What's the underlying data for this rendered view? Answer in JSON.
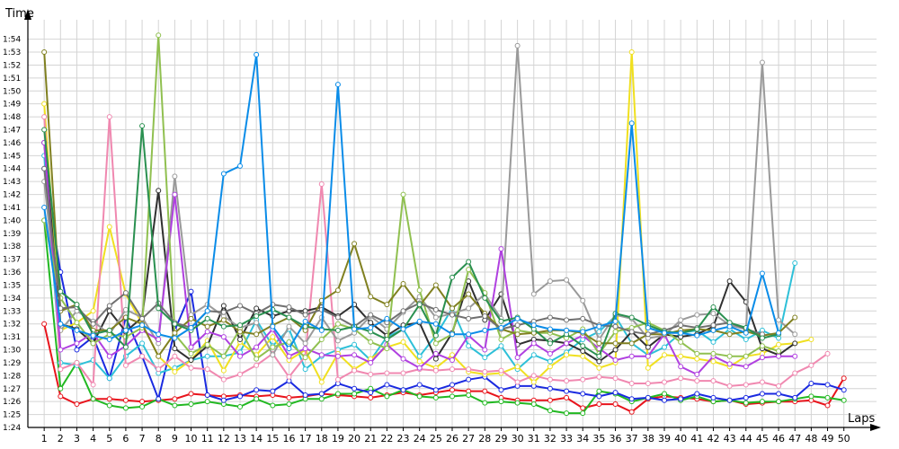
{
  "chart_data": {
    "type": "line",
    "title": "",
    "xlabel": "Laps",
    "ylabel": "Time",
    "xlim": [
      0,
      52
    ],
    "ylim": [
      84,
      115.5
    ],
    "grid": true,
    "y_tick_values": [
      84,
      85,
      86,
      87,
      88,
      89,
      90,
      91,
      92,
      93,
      94,
      95,
      96,
      97,
      98,
      99,
      100,
      101,
      102,
      103,
      104,
      105,
      106,
      107,
      108,
      109,
      110,
      111,
      112,
      113,
      114
    ],
    "y_tick_labels": [
      "1:24",
      "1:25",
      "1:26",
      "1:27",
      "1:28",
      "1:29",
      "1:30",
      "1:31",
      "1:32",
      "1:33",
      "1:34",
      "1:35",
      "1:36",
      "1:37",
      "1:38",
      "1:39",
      "1:40",
      "1:41",
      "1:42",
      "1:43",
      "1:44",
      "1:45",
      "1:46",
      "1:47",
      "1:48",
      "1:49",
      "1:50",
      "1:51",
      "1:52",
      "1:53",
      "1:54"
    ],
    "x_tick_values": [
      1,
      2,
      3,
      4,
      5,
      6,
      7,
      8,
      9,
      10,
      11,
      12,
      13,
      14,
      15,
      16,
      17,
      18,
      19,
      20,
      21,
      22,
      23,
      24,
      25,
      26,
      27,
      28,
      29,
      30,
      31,
      32,
      33,
      34,
      35,
      36,
      37,
      38,
      39,
      40,
      41,
      42,
      43,
      44,
      45,
      46,
      47,
      48,
      49,
      50
    ],
    "x_tick_labels": [
      "1",
      "2",
      "3",
      "4",
      "5",
      "6",
      "7",
      "8",
      "9",
      "10",
      "11",
      "12",
      "13",
      "14",
      "15",
      "16",
      "17",
      "18",
      "19",
      "20",
      "21",
      "22",
      "23",
      "24",
      "25",
      "26",
      "27",
      "28",
      "29",
      "30",
      "31",
      "32",
      "33",
      "34",
      "35",
      "36",
      "37",
      "38",
      "39",
      "40",
      "41",
      "42",
      "43",
      "44",
      "45",
      "46",
      "47",
      "48",
      "49",
      "50"
    ],
    "series": [
      {
        "color": "#e8141c",
        "values": [
          92,
          86.4,
          85.8,
          86.2,
          86.2,
          86.1,
          86,
          86.1,
          86.2,
          86.6,
          86.5,
          86.4,
          86.5,
          86.4,
          86.5,
          86.3,
          86.4,
          86.6,
          86.5,
          86.4,
          86.3,
          86.5,
          86.7,
          86.5,
          86.7,
          86.9,
          86.8,
          86.8,
          86.3,
          86.1,
          86.1,
          86.1,
          86.3,
          85.5,
          85.8,
          85.8,
          85.2,
          86.2,
          86.4,
          86.3,
          86.2,
          86,
          86.1,
          85.8,
          85.9,
          86,
          86,
          86.1,
          85.7,
          87.8
        ]
      },
      {
        "color": "#22b822",
        "values": [
          100,
          87,
          89,
          86.2,
          85.7,
          85.5,
          85.6,
          86.2,
          85.7,
          85.8,
          86,
          85.8,
          85.6,
          86.2,
          85.7,
          85.8,
          86.2,
          86.2,
          86.6,
          86.6,
          87,
          86.4,
          86.9,
          86.4,
          86.3,
          86.4,
          86.5,
          85.9,
          86,
          85.9,
          85.8,
          85.3,
          85.1,
          85.1,
          86.8,
          86.6,
          86,
          86.3,
          86.6,
          86.1,
          86.4,
          86,
          86.1,
          85.9,
          86,
          86,
          86.2,
          86.4,
          86.3,
          86.1
        ]
      },
      {
        "color": "#1a2ae0",
        "values": [
          104,
          96,
          90,
          91,
          87.8,
          92.5,
          89.5,
          86.2,
          91.5,
          94.5,
          86.5,
          86.1,
          86.4,
          86.9,
          86.8,
          87.6,
          86.5,
          86.6,
          87.4,
          87,
          86.7,
          87.3,
          86.9,
          87.3,
          86.9,
          87.3,
          87.7,
          87.9,
          86.9,
          87.2,
          87.2,
          87,
          86.8,
          86.6,
          86.4,
          86.7,
          86.2,
          86.3,
          86.1,
          86.2,
          86.6,
          86.3,
          86.1,
          86.3,
          86.6,
          86.6,
          86.3,
          87.4,
          87.3,
          86.9
        ]
      },
      {
        "color": "#2ec0d8",
        "values": [
          105,
          89,
          88.8,
          89.2,
          87.8,
          89.5,
          90.5,
          88.2,
          88.6,
          89.2,
          89.5,
          89.5,
          89.8,
          92.3,
          90.3,
          91.6,
          88.5,
          89.5,
          90,
          90.4,
          89.2,
          91,
          91.6,
          89.5,
          91.1,
          93.2,
          90.3,
          89.4,
          90.3,
          88.5,
          89.6,
          89.1,
          89.8,
          90.8,
          91.4,
          92.6,
          90.5,
          89.6,
          90.2,
          91.3,
          91.5,
          90.6,
          91.6,
          90.8,
          91.5,
          90.9,
          96.7
        ]
      },
      {
        "color": "#f0e020",
        "values": [
          109,
          91.5,
          92.1,
          93,
          99.5,
          94.3,
          92,
          89.5,
          88.3,
          89.2,
          90.7,
          88.4,
          90.6,
          89.6,
          91,
          89.2,
          90,
          87.5,
          89.7,
          88.5,
          89.3,
          90.2,
          90.6,
          89.1,
          88.6,
          89.6,
          88.3,
          88.1,
          88.2,
          88.7,
          87.5,
          88.7,
          89.6,
          89.5,
          88.6,
          89,
          113,
          88.6,
          89.6,
          89.5,
          89.3,
          89.1,
          88.7,
          89.5,
          89.7,
          90.4,
          90.5,
          90.8
        ]
      },
      {
        "color": "#f088b0",
        "values": [
          108,
          88.5,
          89,
          87.3,
          108,
          88.8,
          89.5,
          88.5,
          89.5,
          88.6,
          88.5,
          87.7,
          88.1,
          88.8,
          89.7,
          87.9,
          89.5,
          102.8,
          87.7,
          88.4,
          88.1,
          88.2,
          88.2,
          88.5,
          88.4,
          88.5,
          88.5,
          88.3,
          88.4,
          87.5,
          88,
          87.7,
          87.6,
          87.7,
          87.9,
          87.8,
          87.4,
          87.4,
          87.5,
          87.8,
          87.6,
          87.6,
          87.2,
          87.3,
          87.5,
          87.2,
          88.2,
          88.8,
          89.7
        ]
      },
      {
        "color": "#303030",
        "values": [
          106,
          92,
          91.6,
          90.5,
          93,
          91.4,
          92.5,
          102.3,
          90.1,
          89.2,
          90.3,
          93.4,
          90.8,
          93.2,
          92.6,
          93,
          93,
          93.3,
          92.6,
          93.5,
          92.1,
          91.1,
          91.9,
          92.1,
          89.3,
          91.3,
          95.3,
          92.3,
          94.3,
          90.4,
          90.8,
          90.7,
          90.5,
          89.9,
          89.1,
          90,
          91.4,
          90.2,
          91.2,
          91,
          91.2,
          91.8,
          95.3,
          93.7,
          90.1,
          89.6,
          90.5
        ]
      },
      {
        "color": "#9a9a9a",
        "values": [
          103,
          91.5,
          93,
          92.2,
          91.2,
          93.1,
          92.5,
          90.5,
          103.4,
          92.7,
          93.5,
          92.6,
          91.7,
          92.1,
          89.6,
          91.8,
          90.5,
          92.5,
          90.7,
          91.3,
          92.6,
          91.6,
          92.9,
          94.1,
          92.5,
          92.8,
          93.2,
          94.3,
          92.4,
          113.5,
          94.3,
          95.3,
          95.4,
          93.8,
          90.8,
          92.7,
          92.4,
          90.9,
          91.1,
          92.3,
          92.7,
          92.8,
          91.9,
          91.6,
          112.2,
          92.3,
          91.2
        ]
      },
      {
        "color": "#b040e0",
        "values": [
          106,
          90,
          90.5,
          91.3,
          89.5,
          90.3,
          91.5,
          90.8,
          102,
          90.2,
          91.4,
          91,
          89.5,
          90.2,
          91.6,
          89.5,
          90.1,
          89.6,
          89.5,
          89.6,
          89,
          90.4,
          89.3,
          88.6,
          89.7,
          89.2,
          91.1,
          90,
          97.8,
          89.4,
          90.5,
          89.7,
          90.5,
          91.1,
          90.1,
          89.2,
          89.5,
          89.5,
          91.2,
          88.7,
          88.1,
          89.5,
          88.9,
          88.7,
          89.4,
          89.5,
          89.5
        ]
      },
      {
        "color": "#90c050",
        "values": [
          100,
          94,
          92.1,
          90.5,
          91.2,
          91,
          91.7,
          114.3,
          91.2,
          89.7,
          90.4,
          89.5,
          91.6,
          89.3,
          90.2,
          90.6,
          89.4,
          90.8,
          92,
          91.6,
          90.6,
          90.1,
          102,
          94.6,
          90.5,
          91.2,
          96.2,
          94.4,
          90.8,
          91.5,
          91.3,
          91.3,
          90.9,
          91.6,
          89.7,
          91.4,
          91.7,
          92.1,
          91.5,
          90.6,
          89.7,
          89.7,
          89.5,
          89.5,
          90.3,
          89.9
        ]
      },
      {
        "color": "#808020",
        "values": [
          113,
          93,
          93.5,
          91.5,
          91.5,
          92.5,
          92,
          89.5,
          91.3,
          92.4,
          91.8,
          92.3,
          91.4,
          91.2,
          91.9,
          92.5,
          91.5,
          93.8,
          94.6,
          98.2,
          94.1,
          93.5,
          95.1,
          93.4,
          95,
          93.2,
          94.3,
          92.8,
          91.6,
          91.2,
          91.3,
          91.5,
          91.5,
          91.3,
          90.5,
          90.5,
          90.5,
          91.2,
          91.2,
          91.5,
          91.6,
          91.5,
          91.2,
          91.4,
          91.1,
          91.3,
          92.5
        ]
      },
      {
        "color": "#707070",
        "values": [
          104,
          93.2,
          93.3,
          92,
          93.4,
          94.4,
          92.4,
          93.6,
          92.1,
          91.7,
          93,
          92.9,
          93.4,
          92.8,
          93.5,
          93.3,
          92.7,
          93.1,
          92.5,
          91.8,
          92.7,
          92.1,
          93,
          93.6,
          93.1,
          92.7,
          92.4,
          92.6,
          91.6,
          91.9,
          92.2,
          92.5,
          92.3,
          92.4,
          91.9,
          91.8,
          91.4,
          91.2,
          91.5,
          91.9,
          91.7,
          91.9,
          92.1,
          91.6,
          91.2
        ]
      },
      {
        "color": "#2a9050",
        "values": [
          107,
          94.5,
          93.5,
          91.2,
          91.5,
          90.2,
          107.3,
          93.2,
          92,
          91.5,
          92.4,
          91.8,
          91.9,
          92.6,
          93.1,
          92.5,
          91.8,
          91.6,
          91.5,
          91.8,
          91.4,
          90.8,
          91.6,
          93.5,
          91.1,
          95.6,
          96.8,
          94,
          92.2,
          92.5,
          91.6,
          90.5,
          91.2,
          90.3,
          89.5,
          92.8,
          92.5,
          91.9,
          91.4,
          91.3,
          91.6,
          93.3,
          92.1,
          91.7,
          90.9,
          91.2
        ]
      },
      {
        "color": "#0a8ce8",
        "values": [
          101,
          92,
          91.5,
          91.1,
          90.8,
          91.5,
          91.9,
          91.2,
          90.9,
          91.7,
          93,
          103.6,
          104.2,
          112.8,
          91.8,
          90.1,
          92.2,
          91.5,
          110.5,
          91.6,
          91.7,
          92.4,
          91.6,
          92.2,
          92,
          91.2,
          91.2,
          91.5,
          91.7,
          92.4,
          91.9,
          91.6,
          91.5,
          91.4,
          91.8,
          92.2,
          107.5,
          91.7,
          91.3,
          91.3,
          91.1,
          91.5,
          91.8,
          91.3,
          95.9,
          91.3
        ]
      }
    ]
  }
}
